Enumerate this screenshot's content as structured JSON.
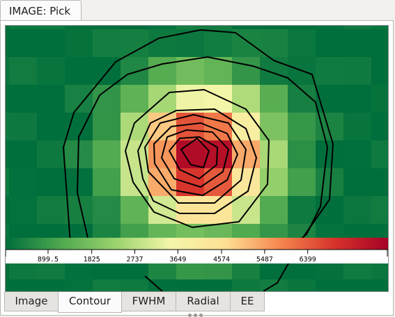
{
  "window": {
    "tab_title": "IMAGE: Pick"
  },
  "colorbar": {
    "ticks": [
      "899.5",
      "1825",
      "2737",
      "3649",
      "4574",
      "5487",
      "6399"
    ],
    "tick_values": [
      899.5,
      1825,
      2737,
      3649,
      4574,
      5487,
      6399
    ],
    "range": [
      0,
      8100
    ],
    "colormap": [
      "#006f3c",
      "#4fa94f",
      "#9bd36e",
      "#f3f6a8",
      "#fde094",
      "#f6874f",
      "#d6332b",
      "#a50026"
    ]
  },
  "bottom_tabs": [
    {
      "label": "Image",
      "active": false
    },
    {
      "label": "Contour",
      "active": true
    },
    {
      "label": "FWHM",
      "active": false
    },
    {
      "label": "Radial",
      "active": false
    },
    {
      "label": "EE",
      "active": false
    }
  ],
  "colors": {
    "background": "#006f3c",
    "contour": "#000000"
  }
}
